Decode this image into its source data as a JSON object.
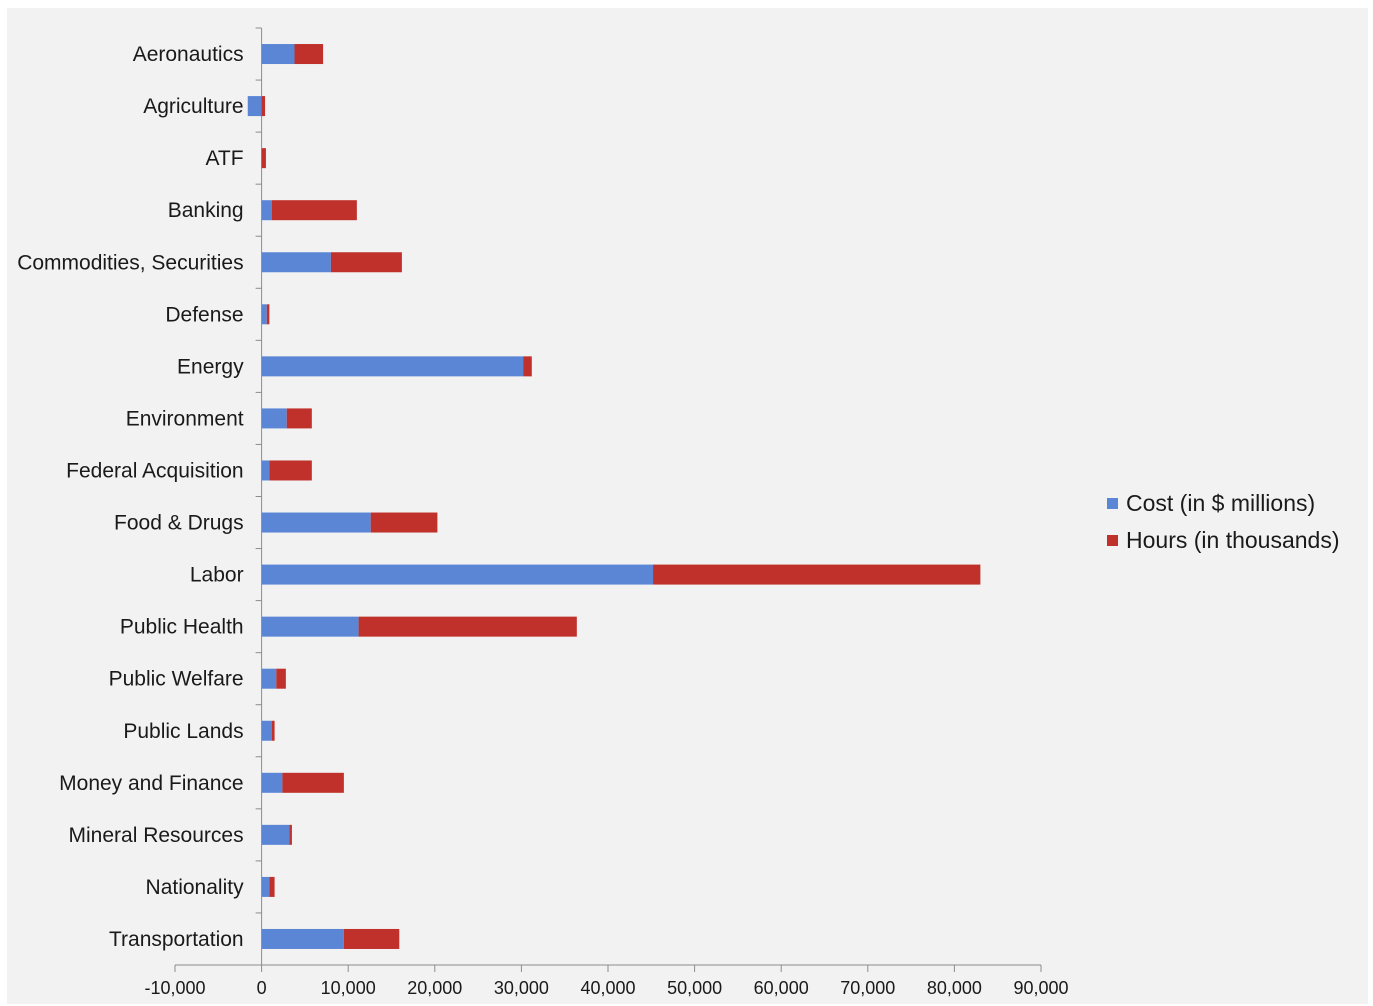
{
  "chart_data": {
    "type": "bar",
    "orientation": "horizontal",
    "stacked": true,
    "categories": [
      "Aeronautics",
      "Agriculture",
      "ATF",
      "Banking",
      "Commodities, Securities",
      "Defense",
      "Energy",
      "Environment",
      "Federal Acquisition",
      "Food & Drugs",
      "Labor",
      "Public Health",
      "Public Welfare",
      "Public Lands",
      "Money and Finance",
      "Mineral Resources",
      "Nationality",
      "Transportation"
    ],
    "series": [
      {
        "name": "Cost (in $ millions)",
        "color": "#5b86d6",
        "values": [
          3800,
          -1600,
          0,
          1200,
          8000,
          600,
          30200,
          2900,
          900,
          12600,
          45200,
          11200,
          1700,
          1200,
          2400,
          3200,
          900,
          9500
        ]
      },
      {
        "name": "Hours (in thousands)",
        "color": "#c0312b",
        "values": [
          3300,
          400,
          500,
          9800,
          8200,
          300,
          1000,
          2900,
          4900,
          7700,
          37800,
          25200,
          1100,
          300,
          7100,
          300,
          600,
          6400
        ]
      }
    ],
    "xlim": [
      -10000,
      90000
    ],
    "xticks": [
      -10000,
      0,
      10000,
      20000,
      30000,
      40000,
      50000,
      60000,
      70000,
      80000,
      90000
    ],
    "xtick_labels": [
      "-10,000",
      "0",
      "10,000",
      "20,000",
      "30,000",
      "40,000",
      "50,000",
      "60,000",
      "70,000",
      "80,000",
      "90,000"
    ],
    "legend_position": "right"
  }
}
